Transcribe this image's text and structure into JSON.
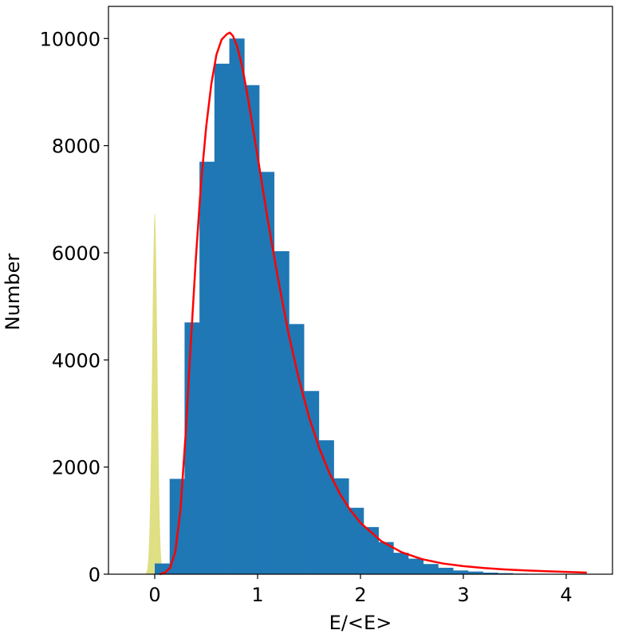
{
  "chart_data": {
    "type": "bar",
    "title": "",
    "xlabel": "E/<E>",
    "ylabel": "Number",
    "xlim": [
      -0.45,
      4.45
    ],
    "ylim": [
      0,
      10600
    ],
    "grid": false,
    "legend": "none",
    "xticks": [
      0,
      1,
      2,
      3,
      4
    ],
    "yticks": [
      0,
      2000,
      4000,
      6000,
      8000,
      10000
    ],
    "histogram": {
      "name": "",
      "color": "#1f77b4",
      "bin_width": 0.145,
      "bins": [
        {
          "x0": 0.0,
          "value": 200
        },
        {
          "x0": 0.145,
          "value": 1780
        },
        {
          "x0": 0.29,
          "value": 4700
        },
        {
          "x0": 0.435,
          "value": 7700
        },
        {
          "x0": 0.58,
          "value": 9530
        },
        {
          "x0": 0.725,
          "value": 10000
        },
        {
          "x0": 0.87,
          "value": 9130
        },
        {
          "x0": 1.015,
          "value": 7510
        },
        {
          "x0": 1.16,
          "value": 6030
        },
        {
          "x0": 1.305,
          "value": 4670
        },
        {
          "x0": 1.45,
          "value": 3420
        },
        {
          "x0": 1.595,
          "value": 2500
        },
        {
          "x0": 1.74,
          "value": 1790
        },
        {
          "x0": 1.885,
          "value": 1240
        },
        {
          "x0": 2.03,
          "value": 880
        },
        {
          "x0": 2.175,
          "value": 600
        },
        {
          "x0": 2.32,
          "value": 400
        },
        {
          "x0": 2.465,
          "value": 290
        },
        {
          "x0": 2.61,
          "value": 190
        },
        {
          "x0": 2.755,
          "value": 120
        },
        {
          "x0": 2.9,
          "value": 70
        },
        {
          "x0": 3.045,
          "value": 50
        },
        {
          "x0": 3.19,
          "value": 30
        },
        {
          "x0": 3.335,
          "value": 20
        },
        {
          "x0": 3.48,
          "value": 10
        }
      ]
    },
    "noise_peak": {
      "name": "",
      "color": "#d4d45a",
      "center": 0.0,
      "sigma": 0.025,
      "peak": 6750
    },
    "fit_curve": {
      "name": "",
      "color": "#ff0000",
      "x": [
        0.05,
        0.1,
        0.15,
        0.2,
        0.25,
        0.3,
        0.35,
        0.4,
        0.45,
        0.5,
        0.55,
        0.6,
        0.65,
        0.7,
        0.73,
        0.76,
        0.8,
        0.85,
        0.9,
        0.95,
        1.0,
        1.1,
        1.2,
        1.3,
        1.4,
        1.5,
        1.6,
        1.7,
        1.8,
        1.9,
        2.0,
        2.2,
        2.4,
        2.6,
        2.8,
        3.0,
        3.2,
        3.4,
        3.6,
        3.8,
        4.0,
        4.2
      ],
      "y": [
        0,
        30,
        120,
        420,
        1200,
        2600,
        4300,
        5900,
        7300,
        8350,
        9150,
        9700,
        9980,
        10080,
        10110,
        10050,
        9860,
        9480,
        8960,
        8380,
        7800,
        6600,
        5500,
        4500,
        3650,
        2930,
        2350,
        1880,
        1500,
        1200,
        960,
        620,
        410,
        280,
        200,
        150,
        115,
        90,
        70,
        55,
        42,
        30
      ]
    }
  }
}
